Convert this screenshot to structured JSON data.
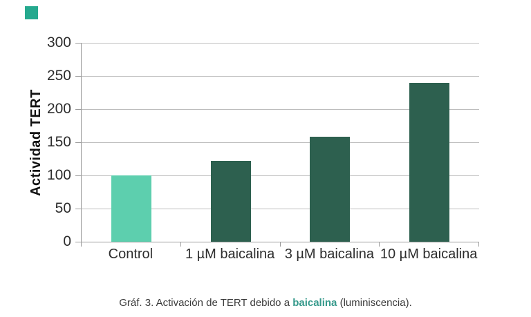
{
  "decor": {
    "accent_square_color": "#25a98e"
  },
  "chart_data": {
    "type": "bar",
    "title": "",
    "xlabel": "",
    "ylabel": "Actividad TERT",
    "categories": [
      "Control",
      "1 µM baicalina",
      "3 µM baicalina",
      "10 µM baicalina"
    ],
    "values": [
      100,
      122,
      158,
      240
    ],
    "bar_colors": [
      "#5dcfae",
      "#2d604f",
      "#2d604f",
      "#2d604f"
    ],
    "ylim": [
      0,
      300
    ],
    "yticks": [
      0,
      50,
      100,
      150,
      200,
      250,
      300
    ],
    "grid": "horizontal",
    "legend_position": "none"
  },
  "caption": {
    "prefix": "Gráf. 3. Activación de TERT debido a ",
    "highlight": "baicalina",
    "suffix": " (luminiscencia).",
    "highlight_color": "#35998b",
    "text_color": "#3a3a3a"
  }
}
